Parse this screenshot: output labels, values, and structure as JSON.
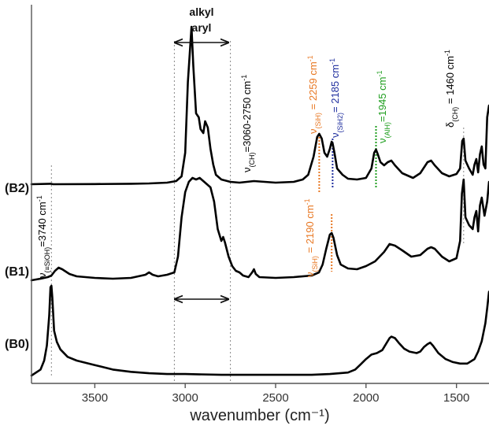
{
  "chart_data": {
    "type": "line",
    "title": "",
    "xlabel": "wavenumber (cm⁻¹)",
    "ylabel": "",
    "xlim": [
      3850,
      1320
    ],
    "x_reversed": true,
    "y_units": "arbitrary, vertically offset traces",
    "xticks": [
      3500,
      3000,
      2500,
      2000,
      1500
    ],
    "series": [
      {
        "name": "(B2)",
        "color": "#000000",
        "points": [
          [
            3850,
            0
          ],
          [
            3745,
            0.6
          ],
          [
            3730,
            0
          ],
          [
            3500,
            0.2
          ],
          [
            3300,
            0.6
          ],
          [
            3200,
            1
          ],
          [
            3100,
            2
          ],
          [
            3050,
            4
          ],
          [
            3020,
            10
          ],
          [
            3000,
            40
          ],
          [
            2985,
            130
          ],
          [
            2965,
            200
          ],
          [
            2955,
            150
          ],
          [
            2940,
            90
          ],
          [
            2925,
            85
          ],
          [
            2915,
            70
          ],
          [
            2900,
            65
          ],
          [
            2890,
            80
          ],
          [
            2875,
            72
          ],
          [
            2860,
            45
          ],
          [
            2845,
            25
          ],
          [
            2830,
            12
          ],
          [
            2800,
            6
          ],
          [
            2750,
            3
          ],
          [
            2700,
            2
          ],
          [
            2620,
            4
          ],
          [
            2500,
            2
          ],
          [
            2400,
            3
          ],
          [
            2350,
            6
          ],
          [
            2320,
            12
          ],
          [
            2290,
            35
          ],
          [
            2270,
            60
          ],
          [
            2259,
            64
          ],
          [
            2245,
            58
          ],
          [
            2230,
            40
          ],
          [
            2215,
            35
          ],
          [
            2200,
            45
          ],
          [
            2190,
            54
          ],
          [
            2185,
            52
          ],
          [
            2175,
            40
          ],
          [
            2160,
            20
          ],
          [
            2130,
            12
          ],
          [
            2100,
            7
          ],
          [
            2050,
            6
          ],
          [
            2000,
            8
          ],
          [
            1970,
            20
          ],
          [
            1955,
            40
          ],
          [
            1945,
            44
          ],
          [
            1935,
            38
          ],
          [
            1920,
            28
          ],
          [
            1900,
            24
          ],
          [
            1880,
            28
          ],
          [
            1860,
            30
          ],
          [
            1840,
            24
          ],
          [
            1800,
            14
          ],
          [
            1740,
            8
          ],
          [
            1700,
            14
          ],
          [
            1660,
            28
          ],
          [
            1640,
            30
          ],
          [
            1620,
            24
          ],
          [
            1580,
            14
          ],
          [
            1540,
            10
          ],
          [
            1500,
            13
          ],
          [
            1480,
            20
          ],
          [
            1468,
            55
          ],
          [
            1460,
            58
          ],
          [
            1450,
            30
          ],
          [
            1430,
            20
          ],
          [
            1410,
            12
          ],
          [
            1400,
            25
          ],
          [
            1390,
            32
          ],
          [
            1380,
            15
          ],
          [
            1370,
            38
          ],
          [
            1360,
            48
          ],
          [
            1350,
            25
          ],
          [
            1340,
            20
          ],
          [
            1330,
            85
          ],
          [
            1320,
            100
          ]
        ]
      },
      {
        "name": "(B1)",
        "color": "#000000",
        "points": [
          [
            3850,
            0
          ],
          [
            3800,
            2
          ],
          [
            3760,
            4
          ],
          [
            3740,
            6
          ],
          [
            3720,
            12
          ],
          [
            3700,
            16
          ],
          [
            3680,
            14
          ],
          [
            3640,
            8
          ],
          [
            3600,
            5
          ],
          [
            3500,
            3
          ],
          [
            3400,
            2
          ],
          [
            3300,
            3
          ],
          [
            3220,
            7
          ],
          [
            3200,
            10
          ],
          [
            3180,
            7
          ],
          [
            3150,
            5
          ],
          [
            3100,
            7
          ],
          [
            3060,
            10
          ],
          [
            3040,
            30
          ],
          [
            3020,
            80
          ],
          [
            3000,
            112
          ],
          [
            2980,
            125
          ],
          [
            2960,
            130
          ],
          [
            2940,
            128
          ],
          [
            2920,
            130
          ],
          [
            2900,
            126
          ],
          [
            2880,
            122
          ],
          [
            2860,
            118
          ],
          [
            2840,
            100
          ],
          [
            2820,
            65
          ],
          [
            2800,
            50
          ],
          [
            2790,
            55
          ],
          [
            2780,
            48
          ],
          [
            2760,
            30
          ],
          [
            2740,
            18
          ],
          [
            2720,
            12
          ],
          [
            2700,
            10
          ],
          [
            2680,
            6
          ],
          [
            2650,
            4
          ],
          [
            2630,
            10
          ],
          [
            2620,
            14
          ],
          [
            2610,
            8
          ],
          [
            2590,
            4
          ],
          [
            2500,
            3
          ],
          [
            2400,
            4
          ],
          [
            2300,
            6
          ],
          [
            2260,
            10
          ],
          [
            2240,
            20
          ],
          [
            2220,
            40
          ],
          [
            2200,
            58
          ],
          [
            2190,
            60
          ],
          [
            2180,
            54
          ],
          [
            2160,
            32
          ],
          [
            2140,
            20
          ],
          [
            2100,
            15
          ],
          [
            2050,
            14
          ],
          [
            2000,
            18
          ],
          [
            1950,
            24
          ],
          [
            1900,
            36
          ],
          [
            1870,
            46
          ],
          [
            1840,
            44
          ],
          [
            1800,
            38
          ],
          [
            1750,
            30
          ],
          [
            1700,
            32
          ],
          [
            1660,
            40
          ],
          [
            1640,
            42
          ],
          [
            1620,
            40
          ],
          [
            1580,
            30
          ],
          [
            1540,
            24
          ],
          [
            1500,
            28
          ],
          [
            1480,
            50
          ],
          [
            1470,
            110
          ],
          [
            1460,
            128
          ],
          [
            1450,
            80
          ],
          [
            1430,
            70
          ],
          [
            1410,
            65
          ],
          [
            1400,
            80
          ],
          [
            1390,
            88
          ],
          [
            1380,
            62
          ],
          [
            1370,
            95
          ],
          [
            1360,
            105
          ],
          [
            1345,
            82
          ],
          [
            1330,
            100
          ],
          [
            1320,
            125
          ]
        ]
      },
      {
        "name": "(B0)",
        "color": "#000000",
        "points": [
          [
            3850,
            0
          ],
          [
            3800,
            8
          ],
          [
            3780,
            20
          ],
          [
            3765,
            40
          ],
          [
            3752,
            80
          ],
          [
            3745,
            118
          ],
          [
            3740,
            120
          ],
          [
            3735,
            105
          ],
          [
            3725,
            60
          ],
          [
            3710,
            45
          ],
          [
            3690,
            35
          ],
          [
            3650,
            25
          ],
          [
            3600,
            20
          ],
          [
            3500,
            14
          ],
          [
            3400,
            8
          ],
          [
            3300,
            5
          ],
          [
            3200,
            3
          ],
          [
            3100,
            2
          ],
          [
            3000,
            2
          ],
          [
            2800,
            1
          ],
          [
            2500,
            1
          ],
          [
            2300,
            1
          ],
          [
            2200,
            2
          ],
          [
            2100,
            4
          ],
          [
            2060,
            8
          ],
          [
            2030,
            15
          ],
          [
            2000,
            22
          ],
          [
            1970,
            28
          ],
          [
            1940,
            30
          ],
          [
            1910,
            34
          ],
          [
            1890,
            42
          ],
          [
            1870,
            50
          ],
          [
            1860,
            52
          ],
          [
            1840,
            50
          ],
          [
            1820,
            44
          ],
          [
            1790,
            36
          ],
          [
            1760,
            32
          ],
          [
            1720,
            30
          ],
          [
            1700,
            32
          ],
          [
            1680,
            38
          ],
          [
            1660,
            42
          ],
          [
            1645,
            44
          ],
          [
            1630,
            40
          ],
          [
            1600,
            30
          ],
          [
            1560,
            22
          ],
          [
            1520,
            18
          ],
          [
            1480,
            16
          ],
          [
            1440,
            16
          ],
          [
            1400,
            22
          ],
          [
            1380,
            32
          ],
          [
            1360,
            46
          ],
          [
            1340,
            70
          ],
          [
            1330,
            90
          ],
          [
            1320,
            112
          ]
        ]
      }
    ],
    "trace_labels": [
      "(B2)",
      "(B1)",
      "(B0)"
    ],
    "region_label": [
      "alkyl",
      "aryl"
    ],
    "reference_lines": [
      {
        "x": 3740,
        "color": "#888888",
        "style": "dotted"
      },
      {
        "x": 3060,
        "color": "#888888",
        "style": "dotted"
      },
      {
        "x": 2750,
        "color": "#888888",
        "style": "dotted"
      },
      {
        "x": 2259,
        "color": "#E87722",
        "style": "dotted"
      },
      {
        "x": 2185,
        "color": "#1F2E9E",
        "style": "dotted"
      },
      {
        "x": 2190,
        "color": "#E87722",
        "style": "dotted"
      },
      {
        "x": 1945,
        "color": "#1E9E1E",
        "style": "dotted"
      },
      {
        "x": 1460,
        "color": "#888888",
        "style": "dotted"
      }
    ],
    "annotations": [
      {
        "base": "ν",
        "sub": "(≡SiOH)",
        "rest": "=3740 cm",
        "sup": "-1",
        "color": "#111111",
        "x": 3740
      },
      {
        "base": "ν",
        "sub": "(CH)",
        "rest": "=3060-2750 cm",
        "sup": "-1",
        "color": "#111111",
        "x": 2750
      },
      {
        "base": "ν",
        "sub": "(SiH)",
        "rest": " = 2259 cm",
        "sup": "-1",
        "color": "#E87722",
        "x": 2259
      },
      {
        "base": "ν",
        "sub": "(SiH2)",
        "rest": "= 2185 cm",
        "sup": "-1",
        "color": "#1F2E9E",
        "x": 2185
      },
      {
        "base": "ν",
        "sub": "(AlH)",
        "rest": "=1945 cm",
        "sup": "-1",
        "color": "#1E9E1E",
        "x": 1945
      },
      {
        "base": "δ",
        "sub": "(CH)",
        "rest": " = 1460 cm",
        "sup": "-1",
        "color": "#111111",
        "x": 1460
      },
      {
        "base": "ν",
        "sub": "(SiH)",
        "rest": " = 2190 cm",
        "sup": "-1",
        "color": "#E87722",
        "x": 2190
      }
    ],
    "grid": false,
    "legend": "none"
  }
}
